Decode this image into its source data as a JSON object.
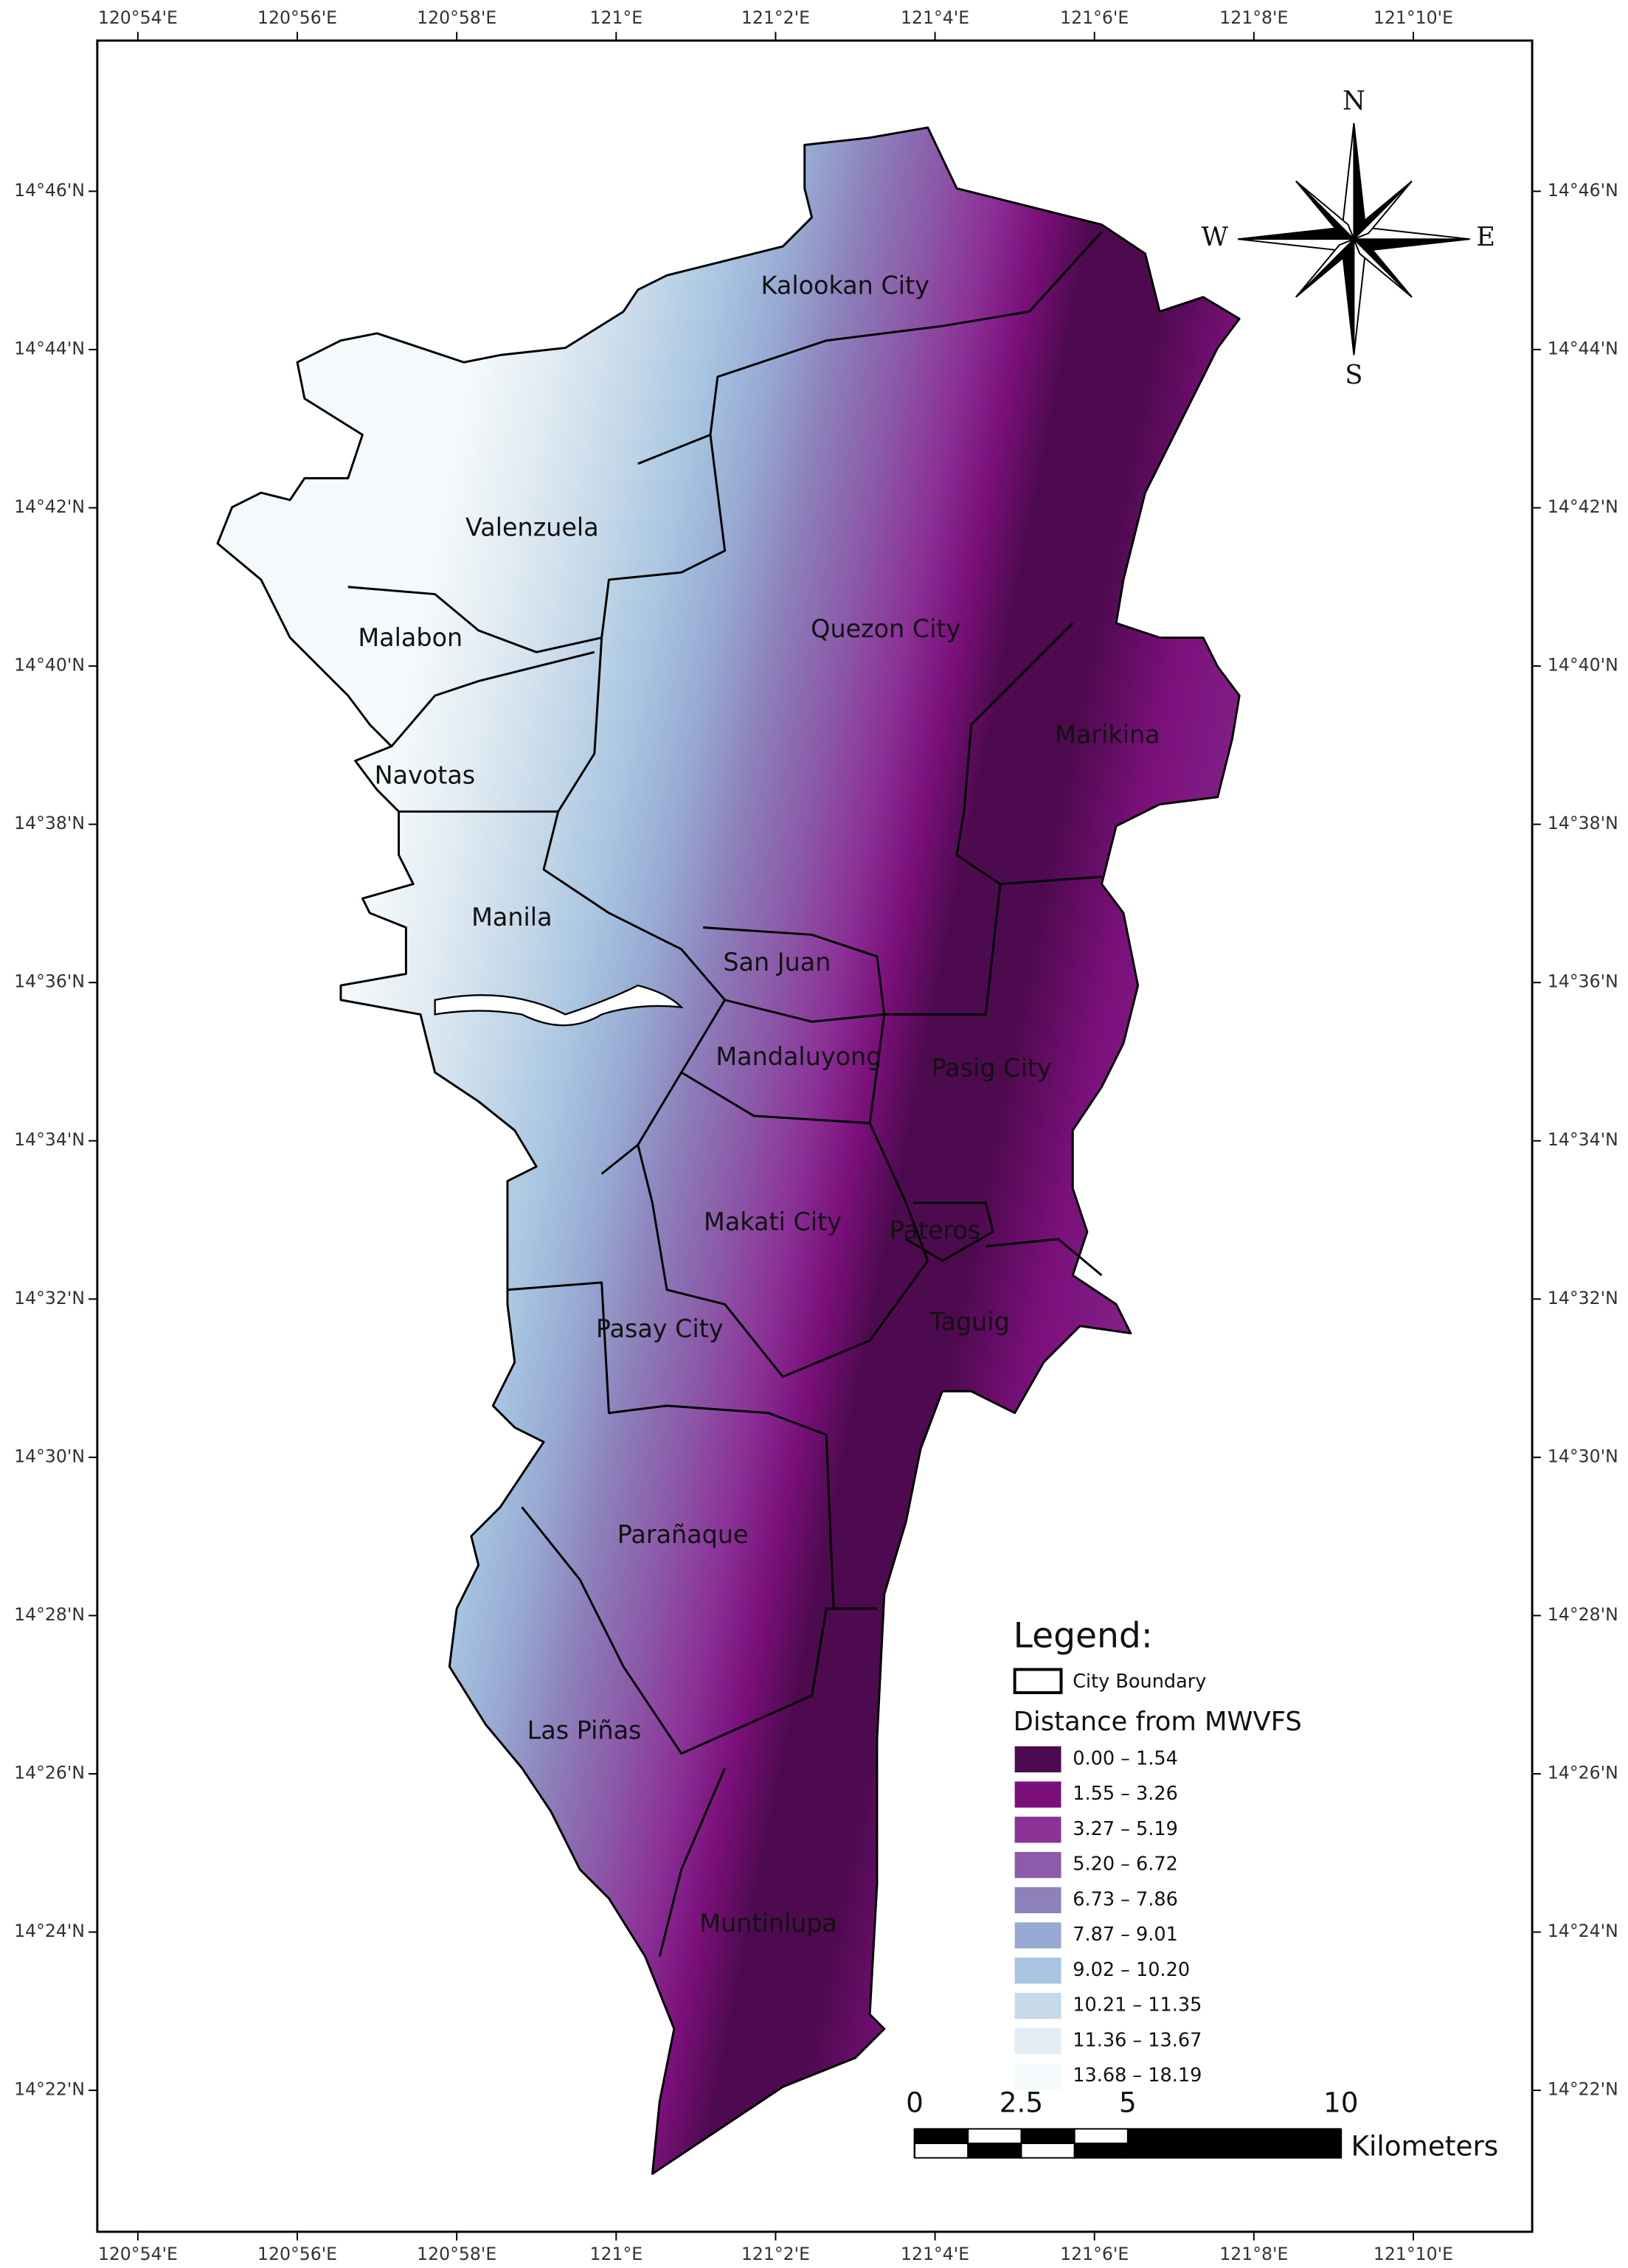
{
  "map": {
    "lon_labels": [
      "120°54'E",
      "120°56'E",
      "120°58'E",
      "121°E",
      "121°2'E",
      "121°4'E",
      "121°6'E",
      "121°8'E",
      "121°10'E"
    ],
    "lat_labels": [
      "14°46'N",
      "14°44'N",
      "14°42'N",
      "14°40'N",
      "14°38'N",
      "14°36'N",
      "14°34'N",
      "14°32'N",
      "14°30'N",
      "14°28'N",
      "14°26'N",
      "14°24'N",
      "14°22'N"
    ],
    "cities": [
      "Kalookan City",
      "Valenzuela",
      "Malabon",
      "Quezon City",
      "Marikina",
      "Navotas",
      "Manila",
      "San Juan",
      "Mandaluyong",
      "Pasig City",
      "Makati City",
      "Pateros",
      "Pasay City",
      "Taguig",
      "Parañaque",
      "Las Piñas",
      "Muntinlupa"
    ],
    "compass": {
      "north": "N",
      "south": "S",
      "east": "E",
      "west": "W"
    }
  },
  "legend": {
    "title": "Legend:",
    "boundary": "City Boundary",
    "subtitle": "Distance from MWVFS",
    "classes": [
      {
        "label": "0.00 – 1.54",
        "color": "#4e0a4f"
      },
      {
        "label": "1.55 – 3.26",
        "color": "#7b107b"
      },
      {
        "label": "3.27 – 5.19",
        "color": "#8b3297"
      },
      {
        "label": "5.20 – 6.72",
        "color": "#8c5ba9"
      },
      {
        "label": "6.73 – 7.86",
        "color": "#8d80bb"
      },
      {
        "label": "7.87 – 9.01",
        "color": "#97a9d2"
      },
      {
        "label": "9.02 – 10.20",
        "color": "#a8c5e1"
      },
      {
        "label": "10.21 – 11.35",
        "color": "#c6d9e9"
      },
      {
        "label": "11.36 – 13.67",
        "color": "#e2ecf3"
      },
      {
        "label": "13.68 – 18.19",
        "color": "#f4f9fb"
      }
    ]
  },
  "scale_bar": {
    "ticks": [
      0,
      2.5,
      5,
      10
    ],
    "unit": "Kilometers"
  }
}
